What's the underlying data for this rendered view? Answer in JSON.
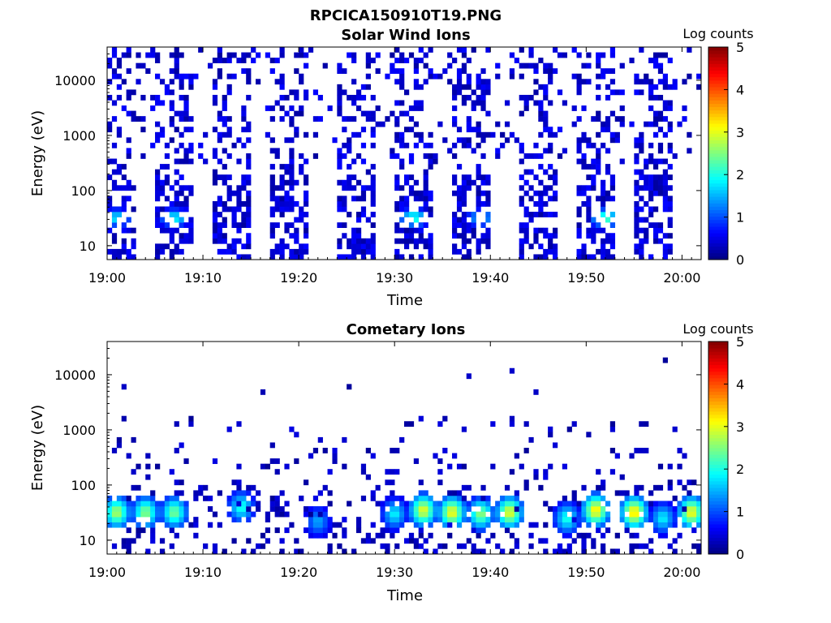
{
  "figure": {
    "title": "RPCICA150910T19.PNG"
  },
  "colorbar": {
    "label": "Log counts",
    "ticks": [
      "0",
      "1",
      "2",
      "3",
      "4",
      "5"
    ],
    "range": [
      0,
      5
    ],
    "colormap": "jet"
  },
  "chart_data": [
    {
      "type": "heatmap",
      "title": "Solar Wind Ions",
      "xlabel": "Time",
      "ylabel": "Energy (eV)",
      "x_tick_labels": [
        "19:00",
        "19:10",
        "19:20",
        "19:30",
        "19:40",
        "19:50",
        "20:00"
      ],
      "y_tick_labels": [
        "10",
        "100",
        "1000",
        "10000"
      ],
      "yscale": "log",
      "ylim": [
        5.6,
        40000
      ],
      "xlim": [
        "19:00",
        "20:02"
      ],
      "grid": false,
      "colorbar_label": "Log counts",
      "bursts_center_time": [
        "19:01",
        "19:07",
        "19:13",
        "19:19",
        "19:26",
        "19:32",
        "19:38",
        "19:45",
        "19:51",
        "19:57"
      ],
      "peaks": [
        {
          "time": "19:01",
          "energy_ev": 32,
          "log_counts": 2.0
        },
        {
          "time": "19:07",
          "energy_ev": 32,
          "log_counts": 2.1
        },
        {
          "time": "19:32",
          "energy_ev": 32,
          "log_counts": 2.3
        },
        {
          "time": "19:39",
          "energy_ev": 32,
          "log_counts": 1.8
        },
        {
          "time": "19:52",
          "energy_ev": 32,
          "log_counts": 2.5
        }
      ]
    },
    {
      "type": "heatmap",
      "title": "Cometary Ions",
      "xlabel": "Time",
      "ylabel": "Energy (eV)",
      "x_tick_labels": [
        "19:00",
        "19:10",
        "19:20",
        "19:30",
        "19:40",
        "19:50",
        "20:00"
      ],
      "y_tick_labels": [
        "10",
        "100",
        "1000",
        "10000"
      ],
      "yscale": "log",
      "ylim": [
        5.6,
        40000
      ],
      "xlim": [
        "19:00",
        "20:02"
      ],
      "grid": false,
      "colorbar_label": "Log counts",
      "peaks": [
        {
          "time": "19:01",
          "energy_ev": 32,
          "log_counts": 3.0
        },
        {
          "time": "19:04",
          "energy_ev": 32,
          "log_counts": 2.8
        },
        {
          "time": "19:07",
          "energy_ev": 32,
          "log_counts": 2.7
        },
        {
          "time": "19:14",
          "energy_ev": 40,
          "log_counts": 2.2
        },
        {
          "time": "19:22",
          "energy_ev": 22,
          "log_counts": 1.6
        },
        {
          "time": "19:30",
          "energy_ev": 30,
          "log_counts": 2.0
        },
        {
          "time": "19:33",
          "energy_ev": 35,
          "log_counts": 3.3
        },
        {
          "time": "19:36",
          "energy_ev": 32,
          "log_counts": 3.4
        },
        {
          "time": "19:39",
          "energy_ev": 30,
          "log_counts": 2.8
        },
        {
          "time": "19:42",
          "energy_ev": 32,
          "log_counts": 3.3
        },
        {
          "time": "19:48",
          "energy_ev": 25,
          "log_counts": 2.2
        },
        {
          "time": "19:51",
          "energy_ev": 35,
          "log_counts": 3.5
        },
        {
          "time": "19:55",
          "energy_ev": 32,
          "log_counts": 3.6
        },
        {
          "time": "19:58",
          "energy_ev": 25,
          "log_counts": 2.0
        },
        {
          "time": "20:01",
          "energy_ev": 32,
          "log_counts": 3.4
        }
      ]
    }
  ]
}
